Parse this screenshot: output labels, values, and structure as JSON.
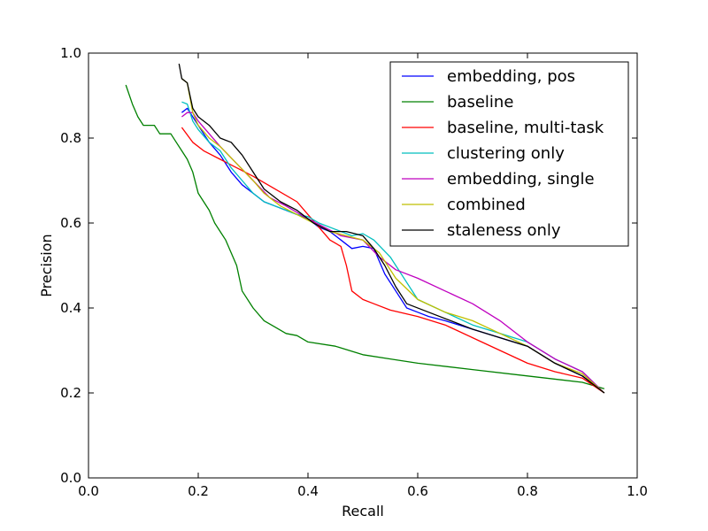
{
  "chart_data": {
    "type": "line",
    "title": "",
    "xlabel": "Recall",
    "ylabel": "Precision",
    "xlim": [
      0.0,
      1.0
    ],
    "ylim": [
      0.0,
      1.0
    ],
    "xticks": [
      "0.0",
      "0.2",
      "0.4",
      "0.6",
      "0.8",
      "1.0"
    ],
    "yticks": [
      "0.0",
      "0.2",
      "0.4",
      "0.6",
      "0.8",
      "1.0"
    ],
    "grid": false,
    "legend_position": "top-right",
    "series": [
      {
        "name": "embedding, pos",
        "color": "#0000ff",
        "points": [
          [
            0.17,
            0.86
          ],
          [
            0.18,
            0.87
          ],
          [
            0.19,
            0.85
          ],
          [
            0.2,
            0.83
          ],
          [
            0.22,
            0.79
          ],
          [
            0.24,
            0.76
          ],
          [
            0.26,
            0.72
          ],
          [
            0.28,
            0.69
          ],
          [
            0.3,
            0.67
          ],
          [
            0.32,
            0.65
          ],
          [
            0.34,
            0.64
          ],
          [
            0.36,
            0.63
          ],
          [
            0.38,
            0.62
          ],
          [
            0.4,
            0.61
          ],
          [
            0.42,
            0.59
          ],
          [
            0.44,
            0.58
          ],
          [
            0.46,
            0.56
          ],
          [
            0.48,
            0.54
          ],
          [
            0.5,
            0.545
          ],
          [
            0.52,
            0.54
          ],
          [
            0.54,
            0.48
          ],
          [
            0.56,
            0.44
          ],
          [
            0.58,
            0.4
          ],
          [
            0.6,
            0.39
          ],
          [
            0.62,
            0.38
          ],
          [
            0.65,
            0.37
          ],
          [
            0.7,
            0.35
          ],
          [
            0.75,
            0.33
          ],
          [
            0.8,
            0.31
          ],
          [
            0.85,
            0.27
          ],
          [
            0.9,
            0.24
          ],
          [
            0.94,
            0.2
          ]
        ]
      },
      {
        "name": "baseline",
        "color": "#008000",
        "points": [
          [
            0.068,
            0.925
          ],
          [
            0.08,
            0.88
          ],
          [
            0.09,
            0.85
          ],
          [
            0.1,
            0.83
          ],
          [
            0.12,
            0.83
          ],
          [
            0.13,
            0.81
          ],
          [
            0.14,
            0.81
          ],
          [
            0.15,
            0.81
          ],
          [
            0.16,
            0.79
          ],
          [
            0.17,
            0.77
          ],
          [
            0.18,
            0.75
          ],
          [
            0.19,
            0.72
          ],
          [
            0.2,
            0.67
          ],
          [
            0.22,
            0.63
          ],
          [
            0.23,
            0.6
          ],
          [
            0.24,
            0.58
          ],
          [
            0.25,
            0.56
          ],
          [
            0.26,
            0.53
          ],
          [
            0.27,
            0.5
          ],
          [
            0.28,
            0.44
          ],
          [
            0.3,
            0.4
          ],
          [
            0.32,
            0.37
          ],
          [
            0.34,
            0.355
          ],
          [
            0.36,
            0.34
          ],
          [
            0.38,
            0.335
          ],
          [
            0.4,
            0.32
          ],
          [
            0.45,
            0.31
          ],
          [
            0.5,
            0.29
          ],
          [
            0.55,
            0.28
          ],
          [
            0.6,
            0.27
          ],
          [
            0.7,
            0.255
          ],
          [
            0.8,
            0.24
          ],
          [
            0.9,
            0.225
          ],
          [
            0.94,
            0.21
          ]
        ]
      },
      {
        "name": "baseline, multi-task",
        "color": "#ff0000",
        "points": [
          [
            0.17,
            0.825
          ],
          [
            0.19,
            0.79
          ],
          [
            0.21,
            0.77
          ],
          [
            0.24,
            0.75
          ],
          [
            0.27,
            0.73
          ],
          [
            0.3,
            0.71
          ],
          [
            0.34,
            0.68
          ],
          [
            0.38,
            0.65
          ],
          [
            0.4,
            0.62
          ],
          [
            0.42,
            0.59
          ],
          [
            0.44,
            0.56
          ],
          [
            0.46,
            0.545
          ],
          [
            0.47,
            0.5
          ],
          [
            0.48,
            0.44
          ],
          [
            0.5,
            0.42
          ],
          [
            0.52,
            0.41
          ],
          [
            0.55,
            0.395
          ],
          [
            0.6,
            0.38
          ],
          [
            0.65,
            0.36
          ],
          [
            0.7,
            0.33
          ],
          [
            0.75,
            0.3
          ],
          [
            0.8,
            0.27
          ],
          [
            0.85,
            0.25
          ],
          [
            0.9,
            0.235
          ],
          [
            0.94,
            0.2
          ]
        ]
      },
      {
        "name": "clustering only",
        "color": "#00bfbf",
        "points": [
          [
            0.17,
            0.885
          ],
          [
            0.18,
            0.88
          ],
          [
            0.19,
            0.84
          ],
          [
            0.2,
            0.82
          ],
          [
            0.22,
            0.79
          ],
          [
            0.24,
            0.77
          ],
          [
            0.26,
            0.73
          ],
          [
            0.28,
            0.7
          ],
          [
            0.3,
            0.67
          ],
          [
            0.32,
            0.65
          ],
          [
            0.35,
            0.635
          ],
          [
            0.38,
            0.62
          ],
          [
            0.4,
            0.615
          ],
          [
            0.42,
            0.6
          ],
          [
            0.45,
            0.585
          ],
          [
            0.48,
            0.57
          ],
          [
            0.5,
            0.575
          ],
          [
            0.52,
            0.56
          ],
          [
            0.55,
            0.52
          ],
          [
            0.58,
            0.46
          ],
          [
            0.6,
            0.42
          ],
          [
            0.65,
            0.39
          ],
          [
            0.7,
            0.36
          ],
          [
            0.75,
            0.34
          ],
          [
            0.8,
            0.32
          ],
          [
            0.85,
            0.28
          ],
          [
            0.9,
            0.25
          ],
          [
            0.94,
            0.2
          ]
        ]
      },
      {
        "name": "embedding, single",
        "color": "#bf00bf",
        "points": [
          [
            0.17,
            0.85
          ],
          [
            0.18,
            0.86
          ],
          [
            0.19,
            0.86
          ],
          [
            0.2,
            0.84
          ],
          [
            0.22,
            0.81
          ],
          [
            0.24,
            0.78
          ],
          [
            0.27,
            0.74
          ],
          [
            0.3,
            0.7
          ],
          [
            0.33,
            0.66
          ],
          [
            0.36,
            0.64
          ],
          [
            0.4,
            0.61
          ],
          [
            0.43,
            0.59
          ],
          [
            0.46,
            0.57
          ],
          [
            0.5,
            0.56
          ],
          [
            0.53,
            0.52
          ],
          [
            0.56,
            0.49
          ],
          [
            0.6,
            0.47
          ],
          [
            0.65,
            0.44
          ],
          [
            0.7,
            0.41
          ],
          [
            0.75,
            0.37
          ],
          [
            0.8,
            0.32
          ],
          [
            0.85,
            0.28
          ],
          [
            0.9,
            0.25
          ],
          [
            0.94,
            0.2
          ]
        ]
      },
      {
        "name": "combined",
        "color": "#bfbf00",
        "points": [
          [
            0.17,
            0.94
          ],
          [
            0.18,
            0.93
          ],
          [
            0.19,
            0.86
          ],
          [
            0.2,
            0.83
          ],
          [
            0.22,
            0.8
          ],
          [
            0.24,
            0.78
          ],
          [
            0.27,
            0.74
          ],
          [
            0.3,
            0.7
          ],
          [
            0.32,
            0.67
          ],
          [
            0.35,
            0.64
          ],
          [
            0.38,
            0.62
          ],
          [
            0.41,
            0.6
          ],
          [
            0.44,
            0.58
          ],
          [
            0.47,
            0.57
          ],
          [
            0.5,
            0.56
          ],
          [
            0.53,
            0.53
          ],
          [
            0.56,
            0.47
          ],
          [
            0.6,
            0.42
          ],
          [
            0.65,
            0.39
          ],
          [
            0.7,
            0.37
          ],
          [
            0.75,
            0.34
          ],
          [
            0.8,
            0.31
          ],
          [
            0.85,
            0.27
          ],
          [
            0.9,
            0.245
          ],
          [
            0.94,
            0.2
          ]
        ]
      },
      {
        "name": "staleness only",
        "color": "#000000",
        "points": [
          [
            0.165,
            0.975
          ],
          [
            0.17,
            0.94
          ],
          [
            0.18,
            0.93
          ],
          [
            0.19,
            0.87
          ],
          [
            0.2,
            0.85
          ],
          [
            0.22,
            0.83
          ],
          [
            0.24,
            0.8
          ],
          [
            0.26,
            0.79
          ],
          [
            0.28,
            0.76
          ],
          [
            0.3,
            0.72
          ],
          [
            0.32,
            0.68
          ],
          [
            0.35,
            0.65
          ],
          [
            0.38,
            0.63
          ],
          [
            0.41,
            0.6
          ],
          [
            0.44,
            0.58
          ],
          [
            0.47,
            0.58
          ],
          [
            0.5,
            0.57
          ],
          [
            0.52,
            0.54
          ],
          [
            0.54,
            0.5
          ],
          [
            0.56,
            0.45
          ],
          [
            0.58,
            0.41
          ],
          [
            0.62,
            0.39
          ],
          [
            0.66,
            0.37
          ],
          [
            0.7,
            0.35
          ],
          [
            0.75,
            0.33
          ],
          [
            0.8,
            0.31
          ],
          [
            0.85,
            0.27
          ],
          [
            0.9,
            0.24
          ],
          [
            0.94,
            0.2
          ]
        ]
      }
    ]
  }
}
